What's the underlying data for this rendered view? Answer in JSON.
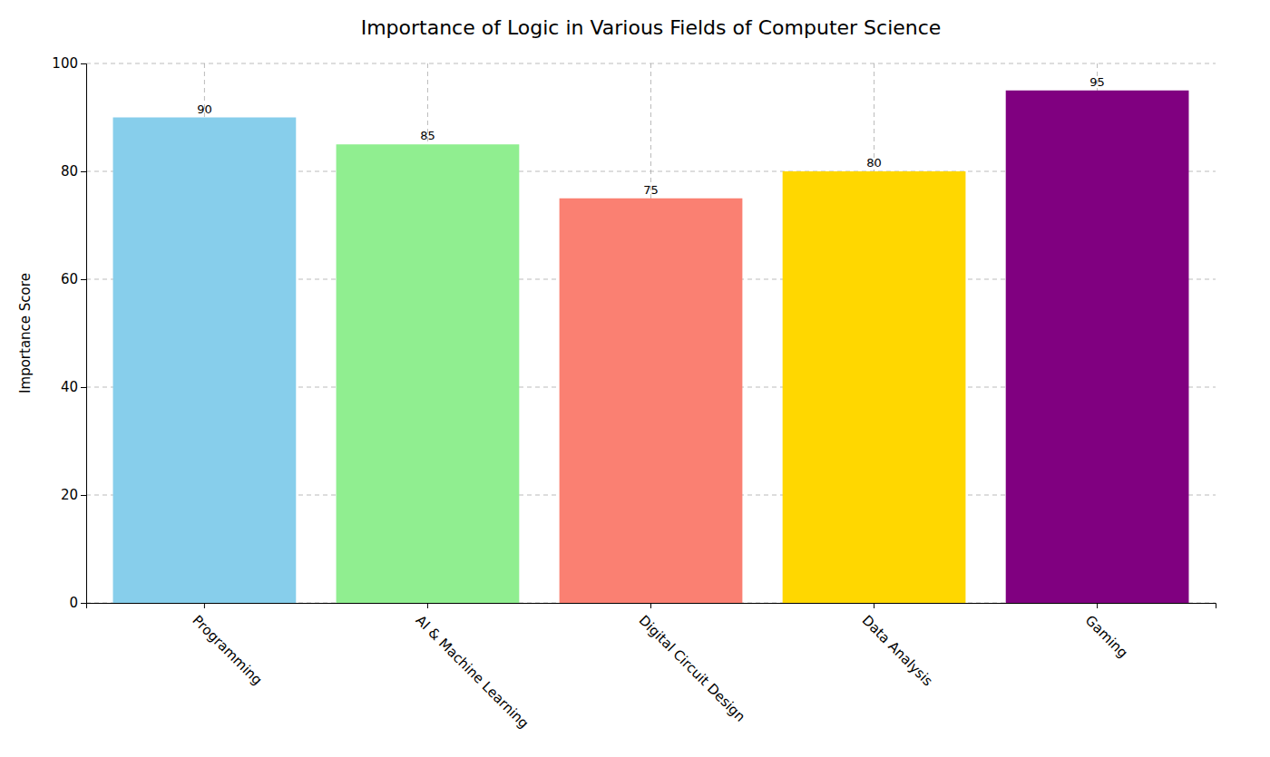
{
  "chart_data": {
    "type": "bar",
    "title": "Importance of Logic in Various Fields of Computer Science",
    "categories": [
      "Programming",
      "AI & Machine Learning",
      "Digital Circuit Design",
      "Data Analysis",
      "Gaming"
    ],
    "values": [
      90,
      85,
      75,
      80,
      95
    ],
    "colors": [
      "#87CEEB",
      "#90EE90",
      "#FA8072",
      "#FFD700",
      "#800080"
    ],
    "ylabel": "Importance Score",
    "ylim": [
      0,
      100
    ],
    "yticks": [
      0,
      20,
      40,
      60,
      80,
      100
    ],
    "grid": true,
    "data_labels": true
  }
}
